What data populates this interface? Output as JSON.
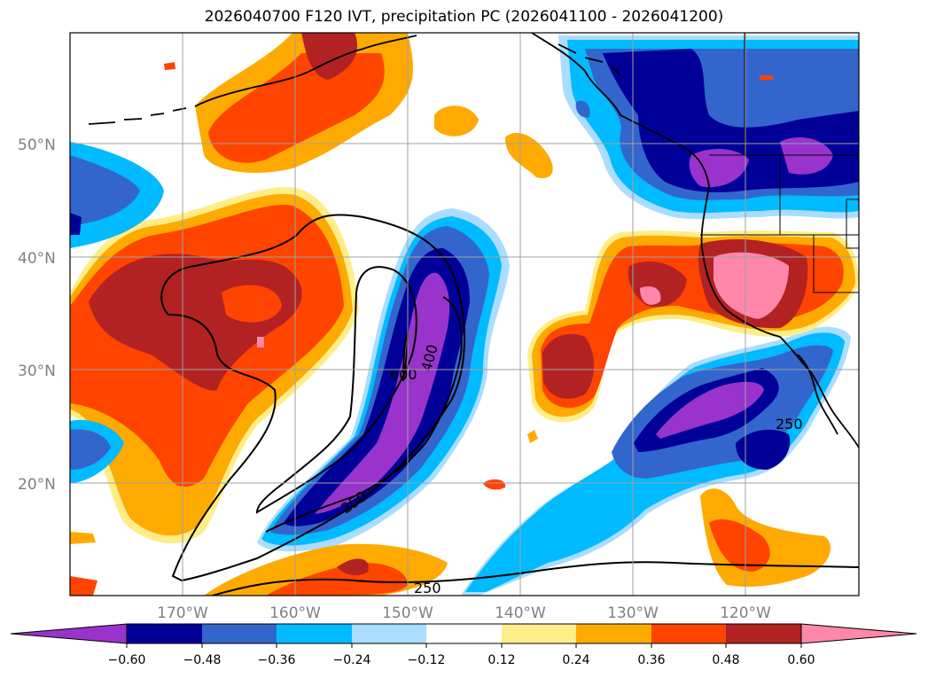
{
  "title": "2026040700 F120 IVT, precipitation PC (2026041100 - 2026041200)",
  "colors": {
    "m060": "#9933cc",
    "m048": "#000099",
    "m036": "#3366cc",
    "m024": "#00bbff",
    "m012": "#aaddff",
    "zero": "#ffffff",
    "p012": "#ffee88",
    "p024": "#ffaa00",
    "p036": "#ff4400",
    "p048": "#b22222",
    "p060": "#ff88aa"
  },
  "latitudes": [
    "50°N",
    "40°N",
    "30°N",
    "20°N"
  ],
  "longitudes": [
    "170°W",
    "160°W",
    "150°W",
    "140°W",
    "130°W",
    "120°W"
  ],
  "colorbar": {
    "ticks": [
      "−0.60",
      "−0.48",
      "−0.36",
      "−0.24",
      "−0.12",
      "0.12",
      "0.24",
      "0.36",
      "0.48",
      "0.60"
    ],
    "levels": [
      -0.6,
      -0.48,
      -0.36,
      -0.24,
      -0.12,
      0.12,
      0.24,
      0.36,
      0.48,
      0.6
    ]
  },
  "contour_labels": [
    "600",
    "400",
    "250",
    "250",
    "250"
  ]
}
